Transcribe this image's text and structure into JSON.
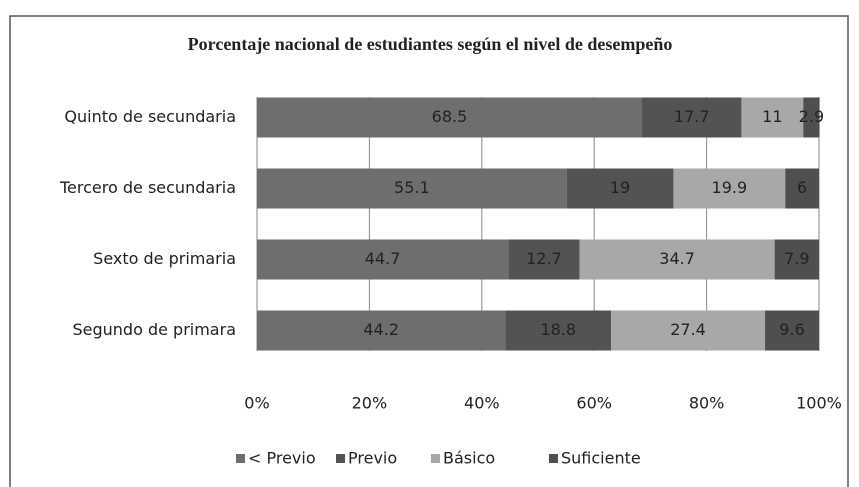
{
  "chart_data": {
    "type": "stacked_barh",
    "title": "Porcentaje nacional de estudiantes según el nivel de desempeño",
    "categories": [
      "Quinto de secundaria",
      "Tercero de secundaria",
      "Sexto de primaria",
      "Segundo de primara"
    ],
    "series": [
      {
        "name": "< Previo",
        "color": "#6e6e6e",
        "values": [
          68.5,
          55.1,
          44.7,
          44.2
        ]
      },
      {
        "name": "Previo",
        "color": "#535353",
        "values": [
          17.7,
          19,
          12.7,
          18.8
        ]
      },
      {
        "name": "Básico",
        "color": "#a8a8a8",
        "values": [
          11,
          19.9,
          34.7,
          27.4
        ]
      },
      {
        "name": "Suficiente",
        "color": "#4f4f4f",
        "values": [
          2.9,
          6,
          7.9,
          9.6
        ]
      }
    ],
    "xlim": [
      0,
      100
    ],
    "xticks": [
      {
        "value": 0,
        "label": "0%"
      },
      {
        "value": 20,
        "label": "20%"
      },
      {
        "value": 40,
        "label": "40%"
      },
      {
        "value": 60,
        "label": "60%"
      },
      {
        "value": 80,
        "label": "80%"
      },
      {
        "value": 100,
        "label": "100%"
      }
    ],
    "grid": true,
    "legend": "bottom"
  }
}
